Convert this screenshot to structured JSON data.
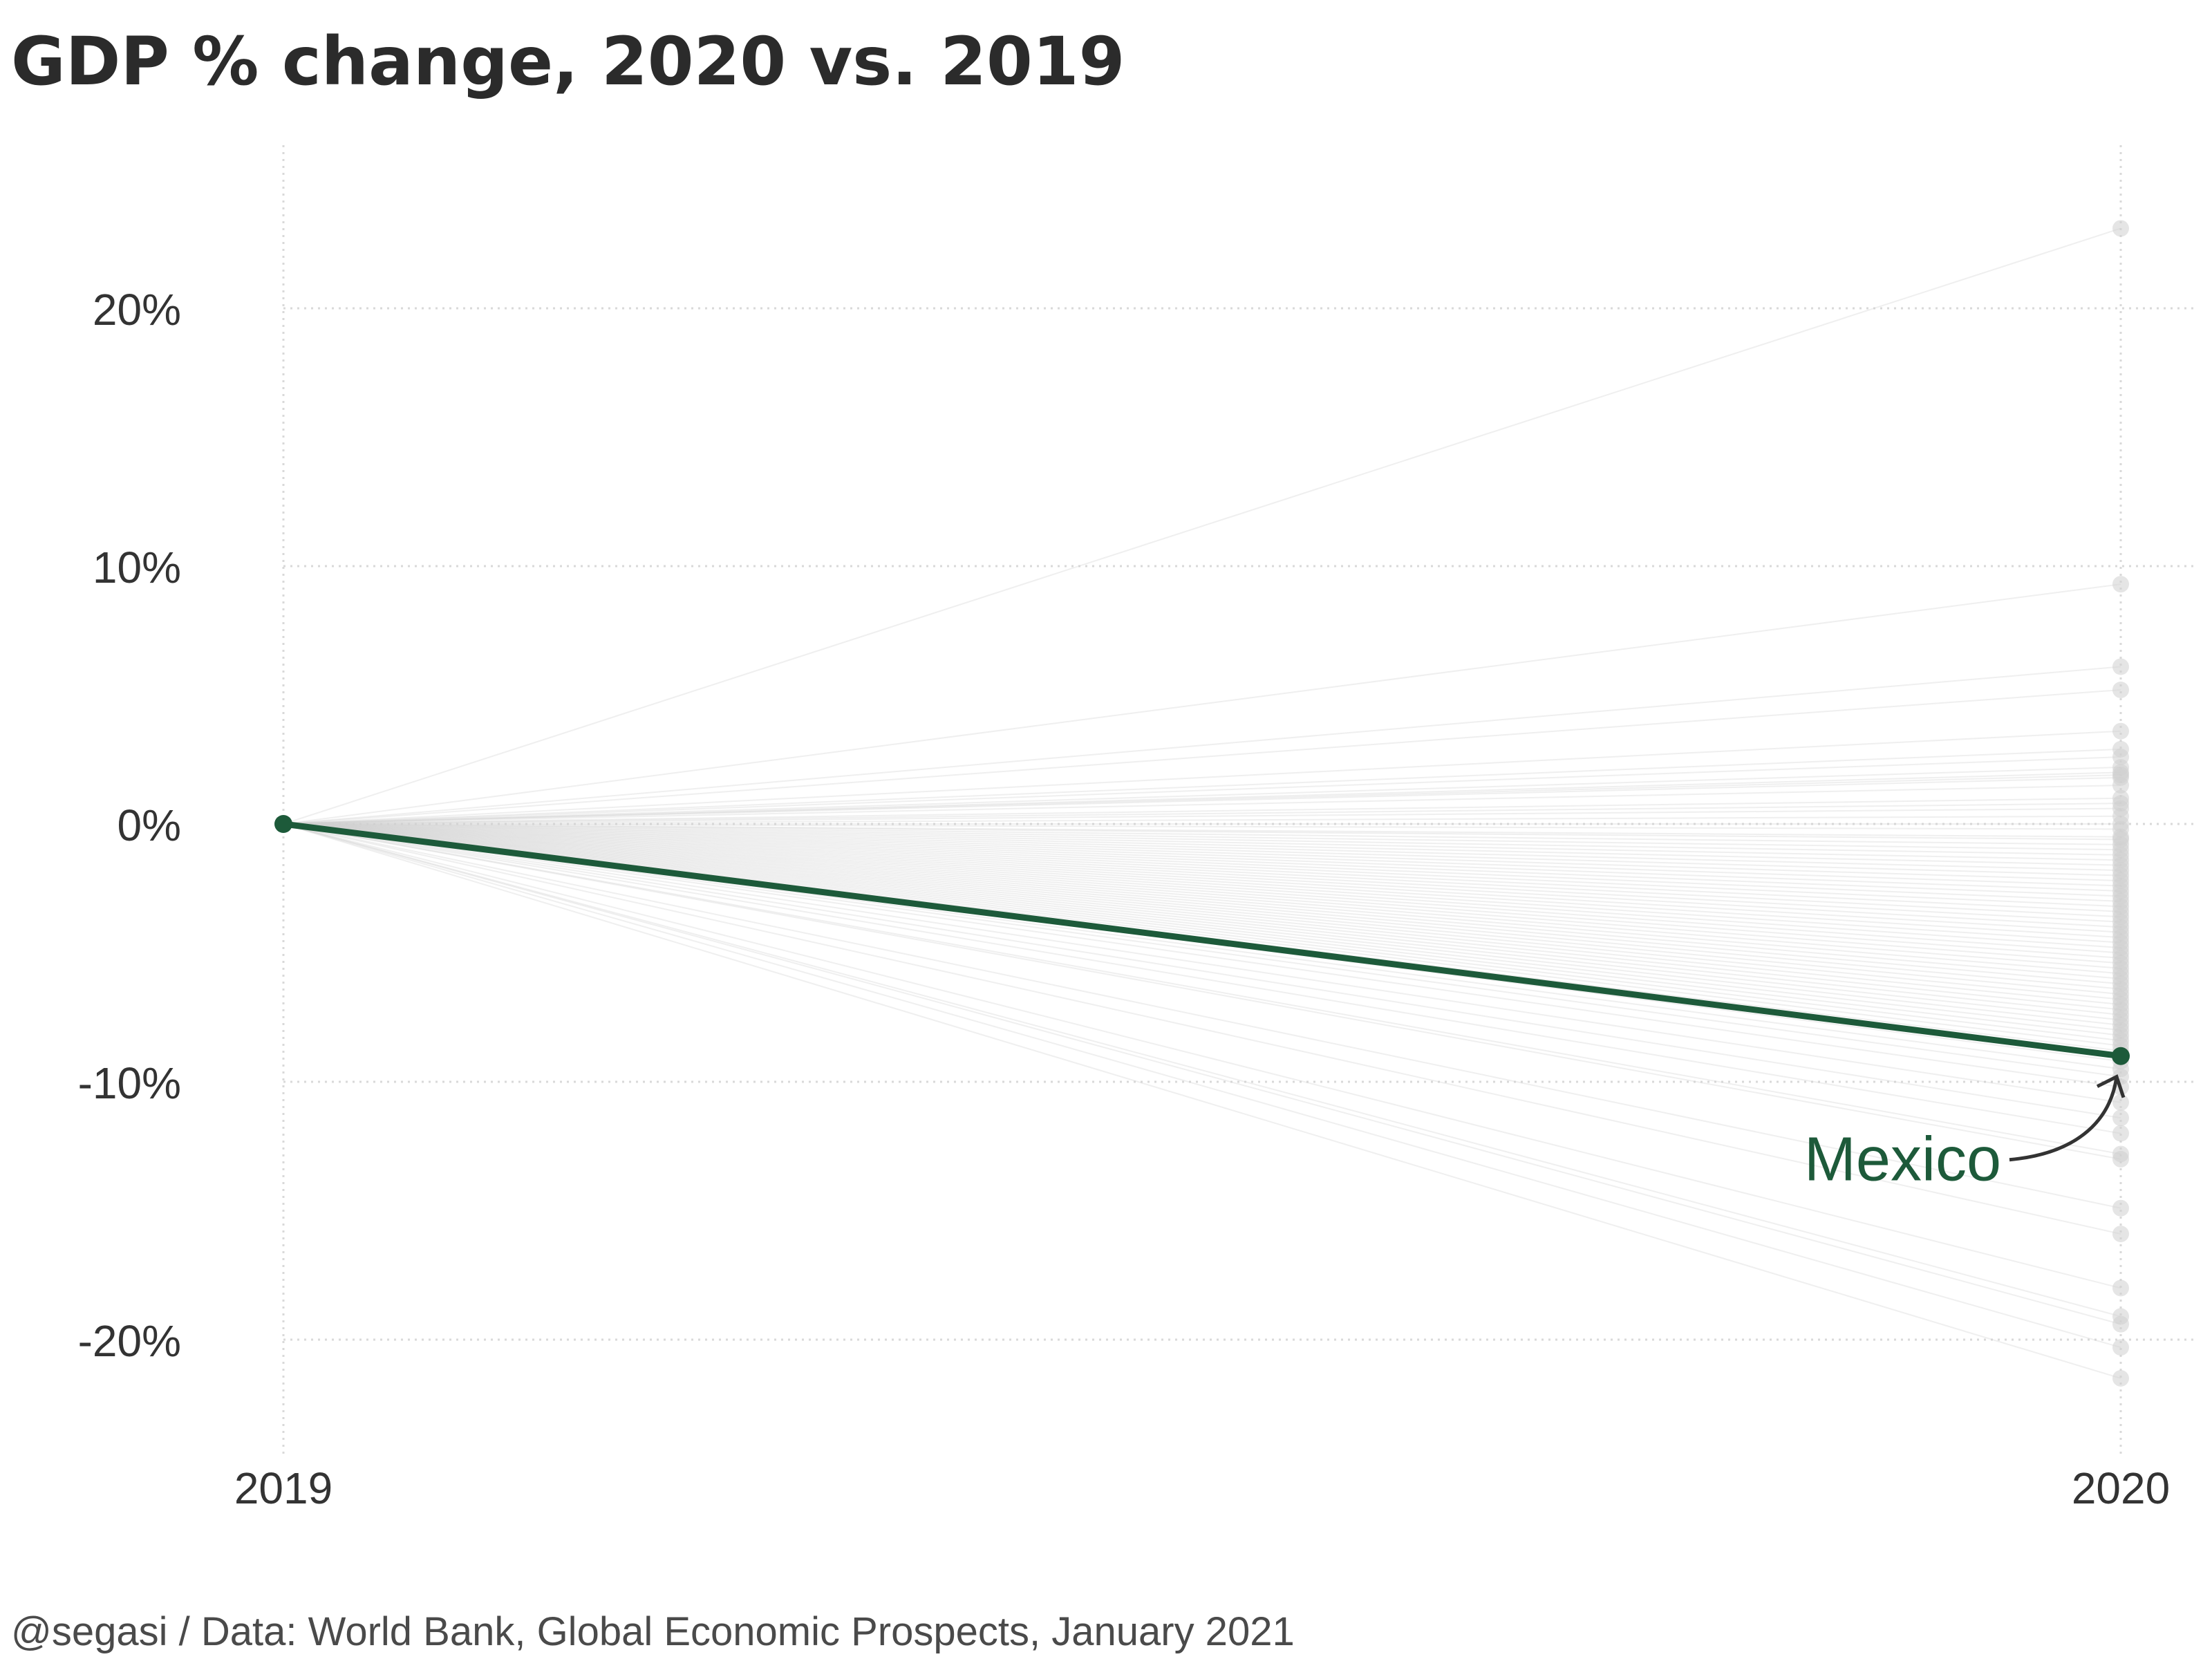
{
  "title": "GDP % change, 2020 vs. 2019",
  "caption": "@segasi / Data: World Bank, Global Economic Prospects, January 2021",
  "colors": {
    "highlight": "#1d5a3a",
    "background_series": "#cfcfcf",
    "text": "#333333"
  },
  "chart_data": {
    "type": "line",
    "title": "GDP % change, 2020 vs. 2019",
    "x_categories": [
      "2019",
      "2020"
    ],
    "y_ticks": [
      20,
      10,
      0,
      -10,
      -20
    ],
    "y_tick_labels": [
      "20%",
      "10%",
      "0%",
      "-10%",
      "-20%"
    ],
    "ylim": [
      -25,
      26
    ],
    "grid": true,
    "highlight": {
      "name": "Mexico",
      "values": [
        0,
        -9.0
      ]
    },
    "other_series_2020_values": [
      23.1,
      9.3,
      6.1,
      5.2,
      3.6,
      2.9,
      2.6,
      2.2,
      2.0,
      1.9,
      1.8,
      1.5,
      1.0,
      0.8,
      0.6,
      0.3,
      0.0,
      -0.2,
      -0.5,
      -0.6,
      -0.8,
      -1.0,
      -1.2,
      -1.4,
      -1.6,
      -1.8,
      -2.0,
      -2.2,
      -2.4,
      -2.6,
      -2.8,
      -3.0,
      -3.2,
      -3.4,
      -3.6,
      -3.8,
      -4.0,
      -4.2,
      -4.4,
      -4.6,
      -4.8,
      -5.0,
      -5.2,
      -5.4,
      -5.6,
      -5.8,
      -6.0,
      -6.2,
      -6.4,
      -6.6,
      -6.8,
      -7.0,
      -7.2,
      -7.4,
      -7.6,
      -7.8,
      -8.0,
      -8.2,
      -8.4,
      -8.6,
      -8.8,
      -9.2,
      -9.5,
      -9.8,
      -10.2,
      -10.8,
      -11.4,
      -12.0,
      -12.8,
      -13.0,
      -14.9,
      -15.9,
      -18.0,
      -19.1,
      -19.4,
      -20.3,
      -21.5
    ],
    "annotation": {
      "label": "Mexico",
      "target_series": "Mexico",
      "target_x": "2020"
    }
  }
}
